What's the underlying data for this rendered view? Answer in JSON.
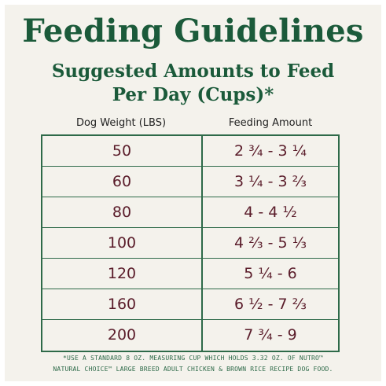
{
  "title": "Feeding Guidelines",
  "subtitle_line1": "Suggested Amounts to Feed",
  "subtitle_line2": "Per Day (Cups)*",
  "columns": {
    "weight": "Dog Weight (LBS)",
    "amount": "Feeding Amount"
  },
  "rows": [
    {
      "weight": "50",
      "amount": "2 ¾ - 3 ¼"
    },
    {
      "weight": "60",
      "amount": "3 ¼ - 3 ⅔"
    },
    {
      "weight": "80",
      "amount": "4 - 4 ½"
    },
    {
      "weight": "100",
      "amount": "4 ⅔ - 5 ⅓"
    },
    {
      "weight": "120",
      "amount": "5 ¼ - 6"
    },
    {
      "weight": "160",
      "amount": "6 ½ - 7 ⅔"
    },
    {
      "weight": "200",
      "amount": "7 ¾ - 9"
    }
  ],
  "footnote_line1": "*USE A STANDARD 8 OZ. MEASURING CUP WHICH HOLDS 3.32 OZ. OF NUTRO™",
  "footnote_line2": "NATURAL CHOICE™ LARGE BREED ADULT CHICKEN & BROWN RICE RECIPE DOG FOOD.",
  "colors": {
    "heading_green": "#1b5a3a",
    "table_lines": "#2e6a49",
    "value_maroon": "#5a1c2a",
    "background": "#f4f2ec"
  }
}
